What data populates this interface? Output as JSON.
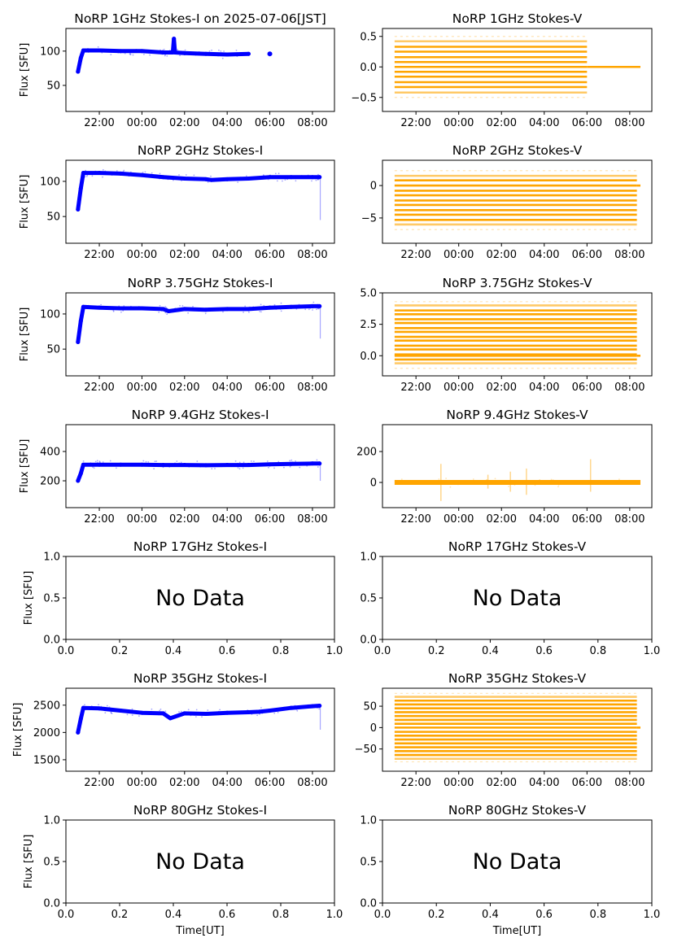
{
  "figure": {
    "date_label": "2025-07-06[JST]",
    "ylabel": "Flux [SFU]",
    "xlabel": "Time[UT]",
    "colors": {
      "stokes_i": "#0000ff",
      "stokes_v": "#ffa500",
      "axes": "#000000"
    }
  },
  "chart_data": [
    {
      "type": "scatter",
      "title": "NoRP 1GHz Stokes-I on 2025-07-06[JST]",
      "ylabel": "Flux [SFU]",
      "xlabel": "",
      "has_data": true,
      "stokes": "I",
      "xlim": [
        "20:26",
        "09:02"
      ],
      "ylim": [
        12,
        133
      ],
      "xticks": [
        "22:00",
        "00:00",
        "02:00",
        "04:00",
        "06:00",
        "08:00"
      ],
      "yticks": [
        50,
        100
      ],
      "series": [
        {
          "name": "1GHz Stokes-I",
          "x": [
            "21:00",
            "21:08",
            "21:15",
            "22:00",
            "23:00",
            "00:00",
            "01:00",
            "01:27",
            "01:30",
            "01:33",
            "02:00",
            "03:00",
            "04:00",
            "05:00",
            "06:00"
          ],
          "y": [
            70,
            90,
            101,
            101,
            100,
            100,
            98,
            98,
            118,
            98,
            97,
            96,
            95,
            96,
            96
          ]
        }
      ]
    },
    {
      "type": "scatter",
      "title": "NoRP 1GHz Stokes-V",
      "ylabel": "",
      "xlabel": "",
      "has_data": true,
      "stokes": "V",
      "xlim": [
        "20:26",
        "09:02"
      ],
      "ylim": [
        -0.73,
        0.63
      ],
      "xticks": [
        "22:00",
        "00:00",
        "02:00",
        "04:00",
        "06:00",
        "08:00"
      ],
      "yticks": [
        0.5,
        0.0,
        -0.5
      ],
      "series": [
        {
          "name": "1GHz Stokes-V",
          "levels": [
            -0.5,
            -0.42,
            -0.33,
            -0.25,
            -0.16,
            -0.08,
            0.0,
            0.08,
            0.16,
            0.25,
            0.33,
            0.42,
            0.5
          ],
          "range": [
            "21:00",
            "06:00"
          ],
          "tail": {
            "range": [
              "06:00",
              "08:30"
            ],
            "value": 0.0
          }
        }
      ]
    },
    {
      "type": "scatter",
      "title": "NoRP 2GHz Stokes-I",
      "ylabel": "Flux [SFU]",
      "xlabel": "",
      "has_data": true,
      "stokes": "I",
      "xlim": [
        "20:26",
        "09:02"
      ],
      "ylim": [
        12,
        130
      ],
      "xticks": [
        "22:00",
        "00:00",
        "02:00",
        "04:00",
        "06:00",
        "08:00"
      ],
      "yticks": [
        50,
        100
      ],
      "series": [
        {
          "name": "2GHz Stokes-I",
          "x": [
            "21:00",
            "21:08",
            "21:15",
            "22:00",
            "23:00",
            "00:00",
            "01:00",
            "02:00",
            "03:00",
            "03:15",
            "04:00",
            "05:00",
            "06:00",
            "07:00",
            "08:00",
            "08:20",
            "08:22"
          ],
          "y": [
            60,
            90,
            112,
            112,
            111,
            109,
            106,
            104,
            103,
            102,
            103,
            104,
            106,
            106,
            106,
            106,
            45
          ]
        }
      ]
    },
    {
      "type": "scatter",
      "title": "NoRP 2GHz Stokes-V",
      "ylabel": "",
      "xlabel": "",
      "has_data": true,
      "stokes": "V",
      "xlim": [
        "20:26",
        "09:02"
      ],
      "ylim": [
        -8.9,
        3.9
      ],
      "xticks": [
        "22:00",
        "00:00",
        "02:00",
        "04:00",
        "06:00",
        "08:00"
      ],
      "yticks": [
        0,
        -5
      ],
      "series": [
        {
          "name": "2GHz Stokes-V",
          "levels": [
            -6.8,
            -6.0,
            -5.3,
            -4.5,
            -3.8,
            -3.0,
            -2.3,
            -1.5,
            -0.8,
            0.0,
            0.8,
            1.5,
            2.3
          ],
          "range": [
            "21:00",
            "08:20"
          ],
          "tail": {
            "range": [
              "08:20",
              "08:30"
            ],
            "value": 0.0
          }
        }
      ]
    },
    {
      "type": "scatter",
      "title": "NoRP 3.75GHz Stokes-I",
      "ylabel": "Flux [SFU]",
      "xlabel": "",
      "has_data": true,
      "stokes": "I",
      "xlim": [
        "20:26",
        "09:02"
      ],
      "ylim": [
        12,
        130
      ],
      "xticks": [
        "22:00",
        "00:00",
        "02:00",
        "04:00",
        "06:00",
        "08:00"
      ],
      "yticks": [
        50,
        100
      ],
      "series": [
        {
          "name": "3.75GHz Stokes-I",
          "x": [
            "21:00",
            "21:08",
            "21:15",
            "22:00",
            "23:00",
            "00:00",
            "01:00",
            "01:15",
            "02:00",
            "03:00",
            "04:00",
            "05:00",
            "06:00",
            "07:00",
            "08:00",
            "08:20",
            "08:22"
          ],
          "y": [
            60,
            90,
            110,
            109,
            108,
            108,
            107,
            104,
            107,
            106,
            107,
            107,
            109,
            110,
            111,
            111,
            65
          ]
        }
      ]
    },
    {
      "type": "scatter",
      "title": "NoRP 3.75GHz Stokes-V",
      "ylabel": "",
      "xlabel": "",
      "has_data": true,
      "stokes": "V",
      "xlim": [
        "20:26",
        "09:02"
      ],
      "ylim": [
        -1.6,
        5.0
      ],
      "xticks": [
        "22:00",
        "00:00",
        "02:00",
        "04:00",
        "06:00",
        "08:00"
      ],
      "yticks": [
        5.0,
        2.5,
        0.0
      ],
      "series": [
        {
          "name": "3.75GHz Stokes-V",
          "levels": [
            -1.0,
            -0.6,
            -0.3,
            0.0,
            0.1,
            0.5,
            0.8,
            1.2,
            1.5,
            1.9,
            2.2,
            2.6,
            2.9,
            3.3,
            3.6,
            4.0,
            4.3
          ],
          "range": [
            "21:00",
            "08:20"
          ],
          "tail": {
            "range": [
              "08:20",
              "08:30"
            ],
            "value": 0.0
          }
        }
      ]
    },
    {
      "type": "scatter",
      "title": "NoRP 9.4GHz Stokes-I",
      "ylabel": "Flux [SFU]",
      "xlabel": "",
      "has_data": true,
      "stokes": "I",
      "xlim": [
        "20:26",
        "09:02"
      ],
      "ylim": [
        17,
        583
      ],
      "xticks": [
        "22:00",
        "00:00",
        "02:00",
        "04:00",
        "06:00",
        "08:00"
      ],
      "yticks": [
        200,
        400
      ],
      "series": [
        {
          "name": "9.4GHz Stokes-I",
          "x": [
            "21:00",
            "21:08",
            "21:15",
            "22:00",
            "23:00",
            "00:00",
            "01:00",
            "02:00",
            "03:00",
            "04:00",
            "05:00",
            "06:00",
            "07:00",
            "08:00",
            "08:20",
            "08:22"
          ],
          "y": [
            200,
            250,
            310,
            310,
            310,
            310,
            308,
            308,
            306,
            308,
            308,
            312,
            315,
            318,
            318,
            200
          ]
        }
      ]
    },
    {
      "type": "scatter",
      "title": "NoRP 9.4GHz Stokes-V",
      "ylabel": "",
      "xlabel": "",
      "has_data": true,
      "stokes": "V",
      "xlim": [
        "20:26",
        "09:02"
      ],
      "ylim": [
        -163,
        374
      ],
      "xticks": [
        "22:00",
        "00:00",
        "02:00",
        "04:00",
        "06:00",
        "08:00"
      ],
      "yticks": [
        200,
        0
      ],
      "series": [
        {
          "name": "9.4GHz Stokes-V",
          "baseline": 0,
          "range": [
            "21:00",
            "08:30"
          ],
          "spikes": [
            {
              "x": "23:10",
              "lo": -120,
              "hi": 120
            },
            {
              "x": "01:22",
              "lo": -40,
              "hi": 50
            },
            {
              "x": "02:25",
              "lo": -60,
              "hi": 70
            },
            {
              "x": "03:10",
              "lo": -80,
              "hi": 90
            },
            {
              "x": "06:10",
              "lo": -60,
              "hi": 150
            }
          ]
        }
      ]
    },
    {
      "type": "scatter",
      "title": "NoRP 17GHz Stokes-I",
      "ylabel": "Flux [SFU]",
      "xlabel": "",
      "has_data": false,
      "stokes": "I",
      "xlim": [
        0,
        1
      ],
      "ylim": [
        0,
        1
      ],
      "xticks": [
        "0.0",
        "0.2",
        "0.4",
        "0.6",
        "0.8",
        "1.0"
      ],
      "yticks": [
        "0.0",
        "0.5",
        "1.0"
      ],
      "annotation": "No Data"
    },
    {
      "type": "scatter",
      "title": "NoRP 17GHz Stokes-V",
      "ylabel": "",
      "xlabel": "",
      "has_data": false,
      "stokes": "V",
      "xlim": [
        0,
        1
      ],
      "ylim": [
        0,
        1
      ],
      "xticks": [
        "0.0",
        "0.2",
        "0.4",
        "0.6",
        "0.8",
        "1.0"
      ],
      "yticks": [
        "0.0",
        "0.5",
        "1.0"
      ],
      "annotation": "No Data"
    },
    {
      "type": "scatter",
      "title": "NoRP 35GHz Stokes-I",
      "ylabel": "Flux [SFU]",
      "xlabel": "",
      "has_data": true,
      "stokes": "I",
      "xlim": [
        "20:26",
        "09:02"
      ],
      "ylim": [
        1290,
        2810
      ],
      "xticks": [
        "22:00",
        "00:00",
        "02:00",
        "04:00",
        "06:00",
        "08:00"
      ],
      "yticks": [
        1500,
        2000,
        2500
      ],
      "series": [
        {
          "name": "35GHz Stokes-I",
          "x": [
            "21:00",
            "21:08",
            "21:15",
            "22:00",
            "23:00",
            "00:00",
            "01:00",
            "01:20",
            "02:00",
            "03:00",
            "04:00",
            "05:00",
            "05:30",
            "06:00",
            "07:00",
            "08:00",
            "08:20",
            "08:22"
          ],
          "y": [
            2000,
            2250,
            2450,
            2440,
            2400,
            2360,
            2350,
            2260,
            2350,
            2340,
            2360,
            2370,
            2380,
            2400,
            2450,
            2480,
            2490,
            2050
          ]
        }
      ]
    },
    {
      "type": "scatter",
      "title": "NoRP 35GHz Stokes-V",
      "ylabel": "",
      "xlabel": "",
      "has_data": true,
      "stokes": "V",
      "xlim": [
        "20:26",
        "09:02"
      ],
      "ylim": [
        -102,
        92
      ],
      "xticks": [
        "22:00",
        "00:00",
        "02:00",
        "04:00",
        "06:00",
        "08:00"
      ],
      "yticks": [
        50,
        0,
        -50
      ],
      "series": [
        {
          "name": "35GHz Stokes-V",
          "levels": [
            -80,
            -73,
            -64,
            -55,
            -46,
            -37,
            -28,
            -19,
            -10,
            0,
            9,
            18,
            27,
            36,
            45,
            54,
            63,
            72,
            80
          ],
          "range": [
            "21:00",
            "08:20"
          ],
          "tail": {
            "range": [
              "08:20",
              "08:30"
            ],
            "value": 0
          }
        }
      ]
    },
    {
      "type": "scatter",
      "title": "NoRP 80GHz Stokes-I",
      "ylabel": "Flux [SFU]",
      "xlabel": "Time[UT]",
      "has_data": false,
      "stokes": "I",
      "xlim": [
        0,
        1
      ],
      "ylim": [
        0,
        1
      ],
      "xticks": [
        "0.0",
        "0.2",
        "0.4",
        "0.6",
        "0.8",
        "1.0"
      ],
      "yticks": [
        "0.0",
        "0.5",
        "1.0"
      ],
      "annotation": "No Data"
    },
    {
      "type": "scatter",
      "title": "NoRP 80GHz Stokes-V",
      "ylabel": "",
      "xlabel": "Time[UT]",
      "has_data": false,
      "stokes": "V",
      "xlim": [
        0,
        1
      ],
      "ylim": [
        0,
        1
      ],
      "xticks": [
        "0.0",
        "0.2",
        "0.4",
        "0.6",
        "0.8",
        "1.0"
      ],
      "yticks": [
        "0.0",
        "0.5",
        "1.0"
      ],
      "annotation": "No Data"
    }
  ]
}
